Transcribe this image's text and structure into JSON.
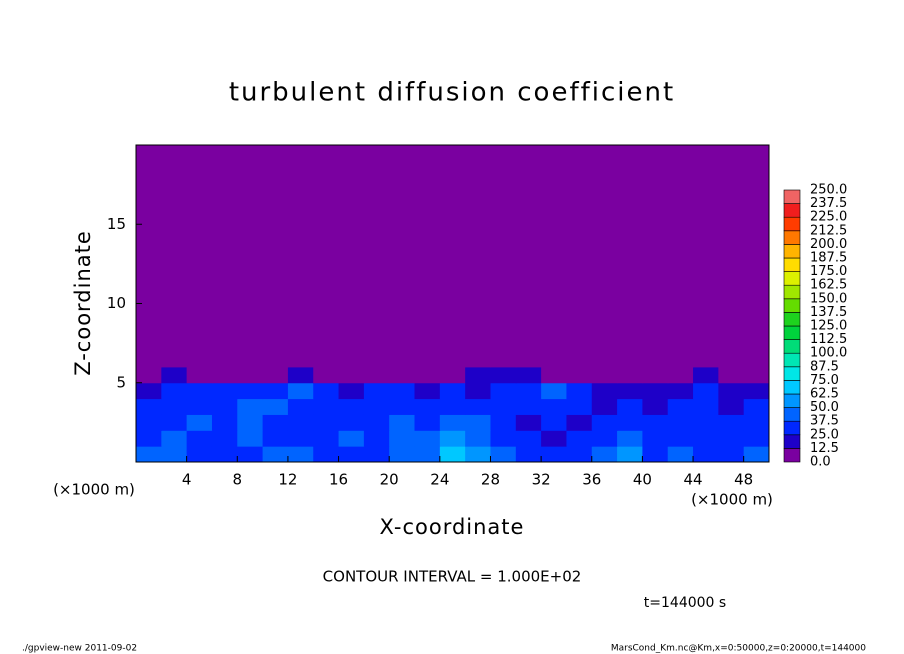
{
  "chart_data": {
    "type": "contour",
    "title": "turbulent diffusion coefficient",
    "x_label": "X-coordinate",
    "y_label": "Z-coordinate",
    "x_unit": "(×1000 m)",
    "y_unit": "(×1000 m)",
    "xlim": [
      0,
      50
    ],
    "ylim": [
      0,
      20
    ],
    "xticks": [
      4,
      8,
      12,
      16,
      20,
      24,
      28,
      32,
      36,
      40,
      44,
      48
    ],
    "yticks": [
      5,
      10,
      15
    ],
    "background_color": "#7a00a0",
    "levels": [
      0.0,
      12.5,
      25.0,
      37.5,
      50.0,
      62.5,
      75.0,
      87.5,
      100.0,
      112.5,
      125.0,
      137.5,
      150.0,
      162.5,
      175.0,
      187.5,
      200.0,
      212.5,
      225.0,
      237.5,
      250.0
    ],
    "level_labels": [
      "0.0",
      "12.5",
      "25.0",
      "37.5",
      "50.0",
      "62.5",
      "75.0",
      "87.5",
      "100.0",
      "112.5",
      "125.0",
      "137.5",
      "150.0",
      "162.5",
      "175.0",
      "187.5",
      "200.0",
      "212.5",
      "225.0",
      "237.5",
      "250.0"
    ],
    "level_colors": [
      "#7a00a0",
      "#1e00c8",
      "#0028ff",
      "#0064ff",
      "#0096ff",
      "#00c8ff",
      "#00e6e6",
      "#00e6b4",
      "#00dc78",
      "#00d23c",
      "#1ed21e",
      "#64dc00",
      "#a0e600",
      "#dcf000",
      "#ffdc00",
      "#ffb400",
      "#ff7800",
      "#ff3c00",
      "#f01e1e",
      "#f06464"
    ],
    "field": {
      "xbins": [
        0,
        2,
        4,
        6,
        8,
        10,
        12,
        14,
        16,
        18,
        20,
        22,
        24,
        26,
        28,
        30,
        32,
        34,
        36,
        38,
        40,
        42,
        44,
        46,
        48,
        50
      ],
      "zbins": [
        0,
        1,
        2,
        3,
        4,
        5,
        6,
        20
      ],
      "values": [
        [
          40,
          45,
          35,
          30,
          35,
          45,
          40,
          30,
          30,
          35,
          40,
          45,
          70,
          55,
          40,
          30,
          25,
          35,
          40,
          50,
          35,
          40,
          30,
          35,
          40
        ],
        [
          35,
          40,
          30,
          35,
          40,
          35,
          30,
          35,
          40,
          30,
          45,
          40,
          60,
          45,
          35,
          25,
          20,
          30,
          35,
          40,
          30,
          35,
          25,
          30,
          35
        ],
        [
          30,
          35,
          40,
          30,
          45,
          30,
          25,
          30,
          35,
          30,
          40,
          35,
          45,
          40,
          30,
          20,
          25,
          20,
          30,
          35,
          25,
          30,
          30,
          25,
          30
        ],
        [
          25,
          30,
          35,
          30,
          40,
          45,
          30,
          25,
          30,
          25,
          35,
          30,
          35,
          30,
          25,
          30,
          35,
          25,
          20,
          30,
          20,
          25,
          30,
          20,
          25
        ],
        [
          20,
          25,
          30,
          35,
          30,
          35,
          40,
          30,
          20,
          25,
          30,
          20,
          25,
          20,
          30,
          35,
          40,
          30,
          15,
          20,
          15,
          20,
          25,
          15,
          20
        ],
        [
          0,
          15,
          0,
          0,
          0,
          0,
          15,
          0,
          0,
          0,
          0,
          0,
          0,
          15,
          15,
          15,
          0,
          0,
          0,
          0,
          0,
          0,
          15,
          0,
          0
        ],
        [
          0,
          0,
          0,
          0,
          0,
          0,
          0,
          0,
          0,
          0,
          0,
          0,
          0,
          0,
          0,
          0,
          0,
          0,
          0,
          0,
          0,
          0,
          0,
          0,
          0
        ]
      ]
    },
    "contour_interval": "CONTOUR INTERVAL = 1.000E+02",
    "time_label": "t=144000 s",
    "footer_left": "./gpview-new  2011-09-02",
    "footer_right": "MarsCond_Km.nc@Km,x=0:50000,z=0:20000,t=144000"
  }
}
